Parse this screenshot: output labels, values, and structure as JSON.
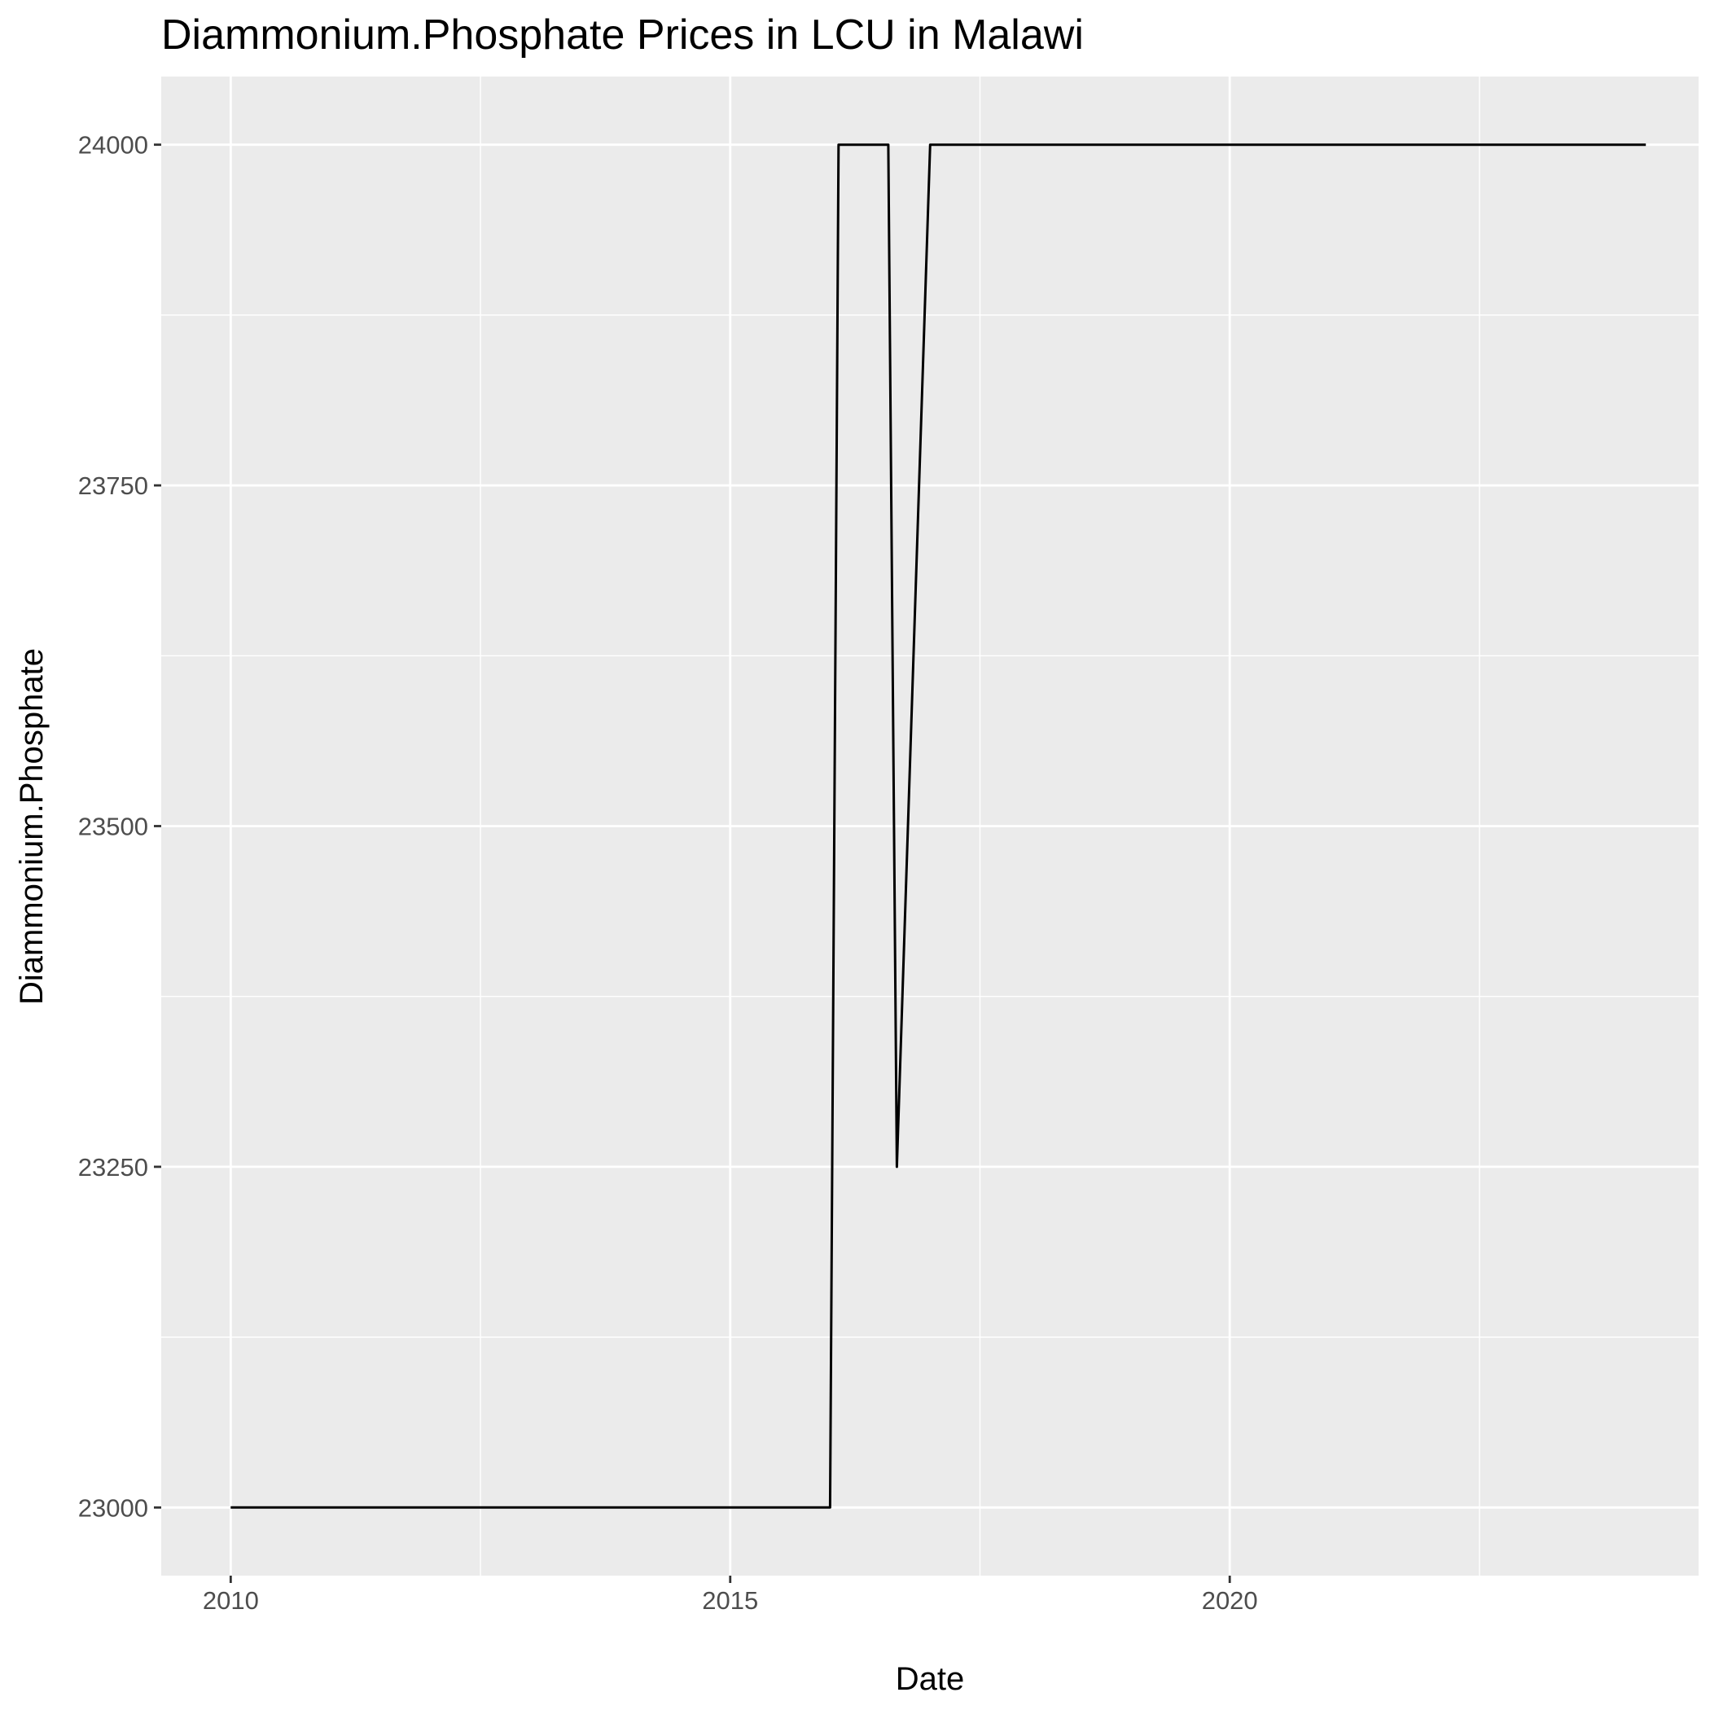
{
  "chart_data": {
    "type": "line",
    "title": "Diammonium.Phosphate Prices in LCU in Malawi",
    "xlabel": "Date",
    "ylabel": "Diammonium.Phosphate",
    "x_tick_labels": [
      {
        "x": "2010-01-01",
        "label": "2010"
      },
      {
        "x": "2015-01-01",
        "label": "2015"
      },
      {
        "x": "2020-01-01",
        "label": "2020"
      }
    ],
    "y_tick_labels": [
      {
        "y": 23000,
        "label": "23000"
      },
      {
        "y": 23250,
        "label": "23250"
      },
      {
        "y": 23500,
        "label": "23500"
      },
      {
        "y": 23750,
        "label": "23750"
      },
      {
        "y": 24000,
        "label": "24000"
      }
    ],
    "xlim": [
      "2009-04-22",
      "2024-09-10"
    ],
    "ylim": [
      22950,
      24050
    ],
    "grid": true,
    "series": [
      {
        "x": [
          "2010-01-01",
          "2016-01-01",
          "2016-02-01",
          "2016-08-01",
          "2016-09-01",
          "2017-01-01",
          "2024-03-01"
        ],
        "y": [
          23000,
          23000,
          24000,
          24000,
          23250,
          24000,
          24000
        ]
      }
    ],
    "colors": {
      "panel": "#ebebeb",
      "grid_major": "#ffffff",
      "line": "#000000",
      "tick_label": "#4d4d4d",
      "tick_mark": "#333333"
    }
  }
}
